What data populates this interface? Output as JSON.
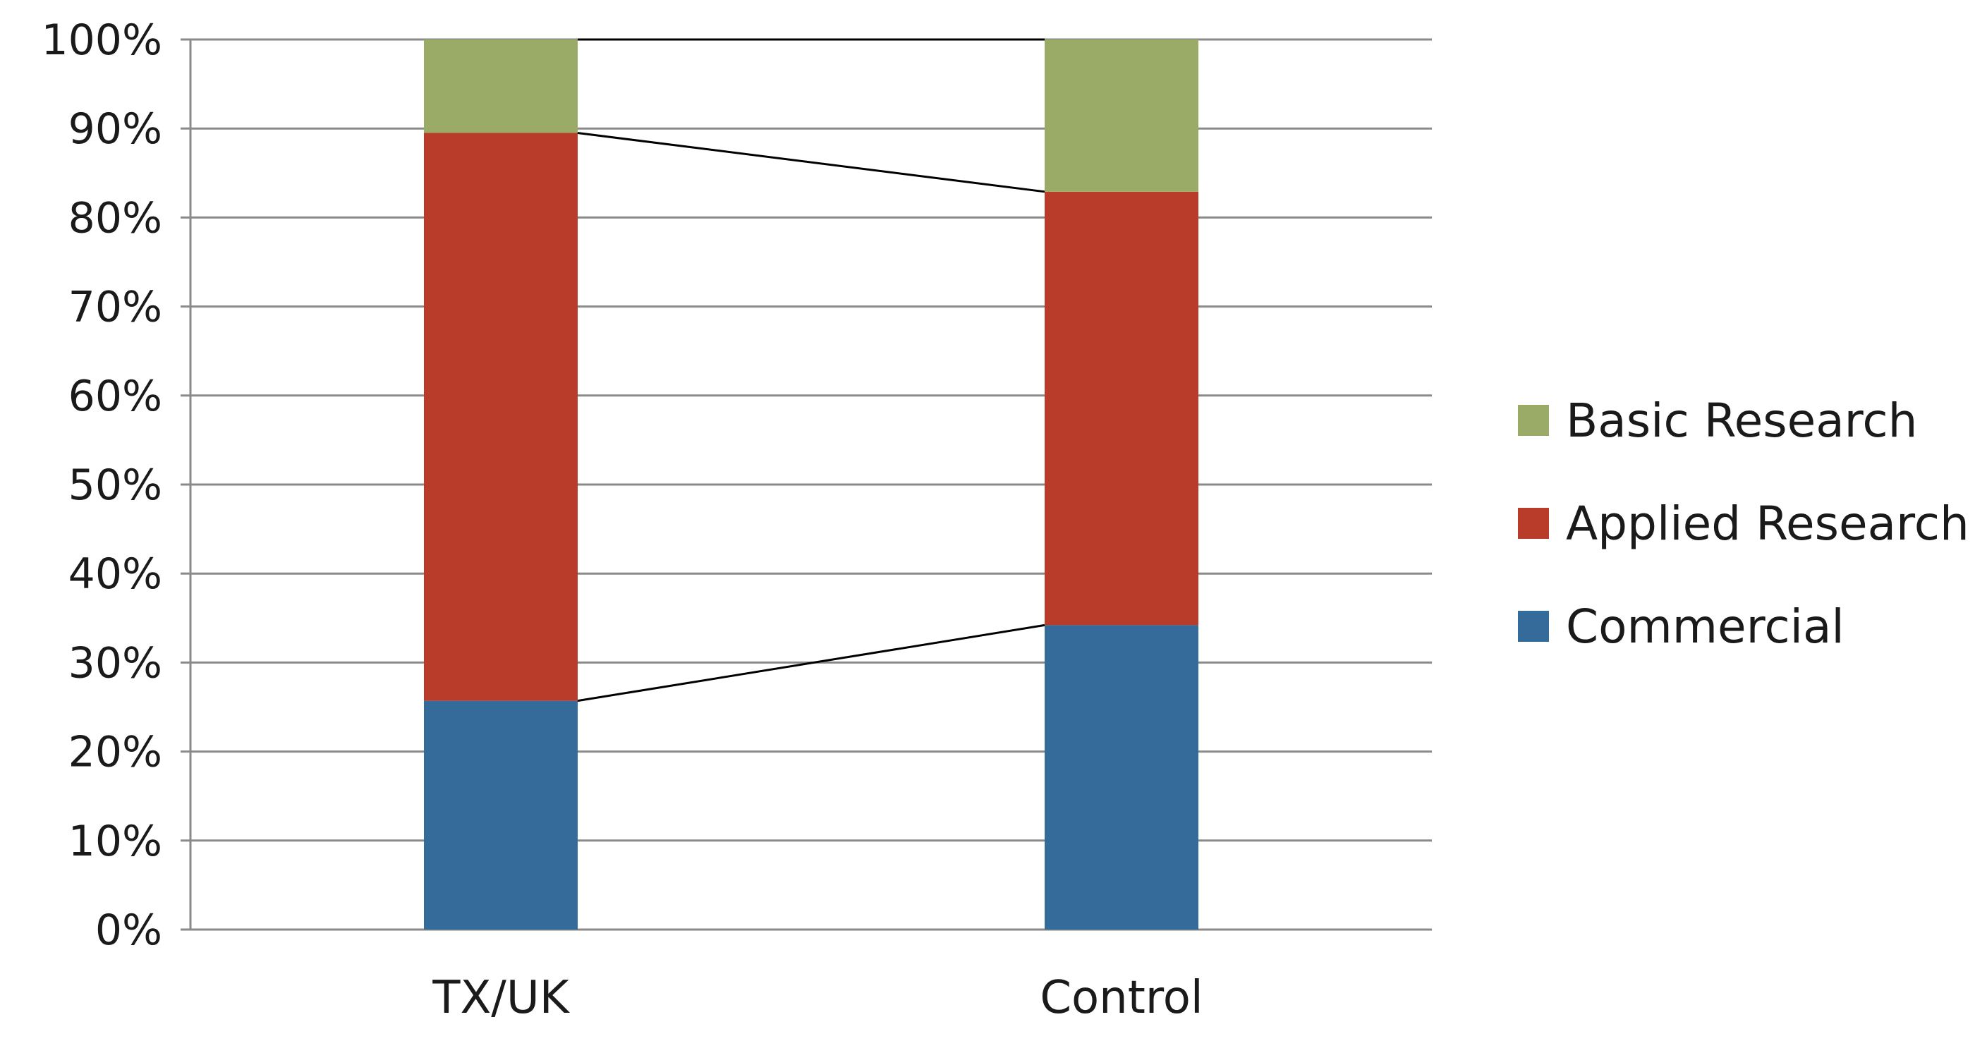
{
  "chart_data": {
    "type": "bar",
    "stacked": true,
    "percent": true,
    "categories": [
      "TX/UK",
      "Control"
    ],
    "series": [
      {
        "name": "Commercial",
        "values": [
          25.7,
          34.2
        ],
        "color": "#346b9a"
      },
      {
        "name": "Applied Research",
        "values": [
          63.8,
          48.7
        ],
        "color": "#b93c2a"
      },
      {
        "name": "Basic Research",
        "values": [
          10.5,
          17.1
        ],
        "color": "#9aab68"
      }
    ],
    "ylim": [
      0,
      100
    ],
    "yticks": [
      0,
      10,
      20,
      30,
      40,
      50,
      60,
      70,
      80,
      90,
      100
    ],
    "ytick_labels": [
      "0%",
      "10%",
      "20%",
      "30%",
      "40%",
      "50%",
      "60%",
      "70%",
      "80%",
      "90%",
      "100%"
    ],
    "grid": true,
    "series_connector_lines": true,
    "legend": {
      "position": "right",
      "order": [
        "Basic Research",
        "Applied Research",
        "Commercial"
      ]
    },
    "title": "",
    "xlabel": "",
    "ylabel": ""
  }
}
